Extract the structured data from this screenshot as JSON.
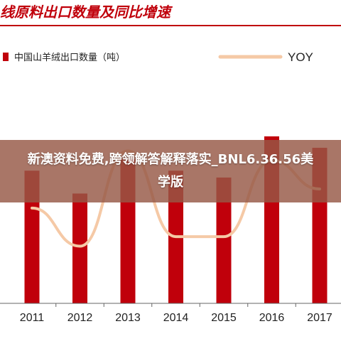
{
  "header": {
    "title": "线原料出口数量及同比增速"
  },
  "overlay": {
    "text": "新澳资料免费,跨领解答解释落实_BNL6.36.56美学版"
  },
  "colors": {
    "bar": "#c0000b",
    "line": "#f5c9a6",
    "title": "#c0000b",
    "banner": "#965846"
  },
  "chart_data": {
    "type": "bar",
    "categories": [
      "2011",
      "2012",
      "2013",
      "2014",
      "2015",
      "2016",
      "2017"
    ],
    "legend": {
      "placement": "top",
      "bar_label": "中国山羊绒出口数量（吨）",
      "line_label": "YOY"
    },
    "series": [
      {
        "name": "中国山羊绒出口数量（吨）",
        "type": "bar",
        "values": [
          58,
          48,
          63,
          58,
          55,
          73,
          68
        ]
      },
      {
        "name": "YOY",
        "type": "line",
        "axis": "right",
        "values": [
          -10,
          -30,
          20,
          -25,
          -25,
          15,
          0
        ]
      }
    ],
    "left_axis_range": [
      0,
      100
    ],
    "right_axis_range": [
      -60,
      60
    ],
    "grid": false
  }
}
